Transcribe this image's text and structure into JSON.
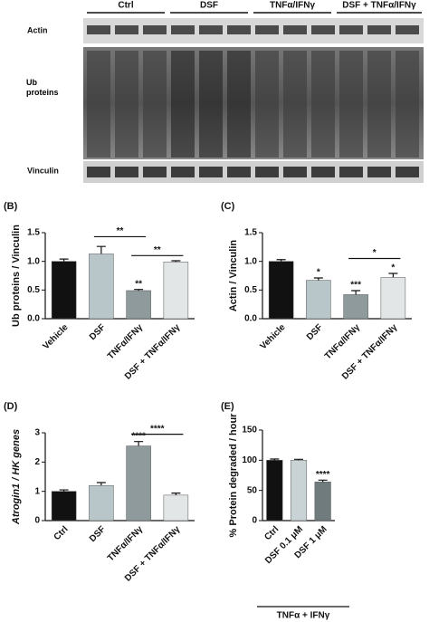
{
  "blot": {
    "groups": [
      "Ctrl",
      "DSF",
      "TNFα/IFNγ",
      "DSF + TNFα/IFNγ"
    ],
    "rows": [
      "Actin",
      "Ub proteins",
      "Vinculin"
    ]
  },
  "chart_data": [
    {
      "type": "bar",
      "panel": "(B)",
      "y_label": "Ub proteins / Vinculin",
      "categories": [
        "Vehicle",
        "DSF",
        "TNFα/IFNγ",
        "DSF + TNFα/IFNγ"
      ],
      "values": [
        1.0,
        1.13,
        0.49,
        0.99
      ],
      "errors": [
        0.04,
        0.13,
        0.02,
        0.02
      ],
      "colors": [
        "#111111",
        "#b8c6ca",
        "#8e9a9c",
        "#e3e6e6"
      ],
      "ylim": [
        0,
        1.5
      ],
      "yticks": [
        {
          "value": 0,
          "label": "0.0"
        },
        {
          "value": 0.5,
          "label": "0.5"
        },
        {
          "value": 1,
          "label": "1.0"
        },
        {
          "value": 1.5,
          "label": "1.5"
        }
      ],
      "significance": [
        null,
        null,
        "**",
        null
      ],
      "comparisons": [
        "**",
        "**"
      ]
    },
    {
      "type": "bar",
      "panel": "(C)",
      "y_label": "Actin / Vinculin",
      "categories": [
        "Vehicle",
        "DSF",
        "TNFα/IFNγ",
        "DSF + TNFα/IFNγ"
      ],
      "values": [
        1.0,
        0.67,
        0.42,
        0.72
      ],
      "errors": [
        0.03,
        0.04,
        0.07,
        0.07
      ],
      "colors": [
        "#111111",
        "#b8c6ca",
        "#8e9a9c",
        "#e3e6e6"
      ],
      "ylim": [
        0,
        1.5
      ],
      "yticks": [
        {
          "value": 0,
          "label": "0.0"
        },
        {
          "value": 0.5,
          "label": "0.5"
        },
        {
          "value": 1,
          "label": "1.0"
        },
        {
          "value": 1.5,
          "label": "1.5"
        }
      ],
      "significance": [
        null,
        "*",
        "***",
        "*"
      ],
      "comparisons": [
        "*"
      ]
    },
    {
      "type": "bar",
      "panel": "(D)",
      "y_label": "Atrogin1 / HK genes",
      "categories": [
        "Ctrl",
        "DSF",
        "TNFα/IFNγ",
        "DSF + TNFα/IFNγ"
      ],
      "values": [
        1.0,
        1.2,
        2.55,
        0.87
      ],
      "errors": [
        0.05,
        0.1,
        0.15,
        0.07
      ],
      "colors": [
        "#111111",
        "#b8c6ca",
        "#8e9a9c",
        "#e3e6e6"
      ],
      "ylim": [
        0,
        3
      ],
      "yticks": [
        0,
        1,
        2,
        3
      ],
      "significance": [
        null,
        null,
        "****",
        null
      ],
      "comparisons": [
        "****"
      ]
    },
    {
      "type": "bar",
      "panel": "(E)",
      "y_label": "% Protein degraded / hour",
      "categories": [
        "Ctrl",
        "DSF 0.1 μM",
        "DSF 1 μM"
      ],
      "values": [
        100,
        100,
        64
      ],
      "errors": [
        2,
        1.5,
        3
      ],
      "colors": [
        "#111111",
        "#c9d3d5",
        "#6f7b7d"
      ],
      "ylim": [
        0,
        150
      ],
      "yticks": [
        0,
        50,
        100,
        150
      ],
      "significance": [
        null,
        null,
        "****"
      ],
      "group_label": "TNFα + IFNγ"
    }
  ]
}
